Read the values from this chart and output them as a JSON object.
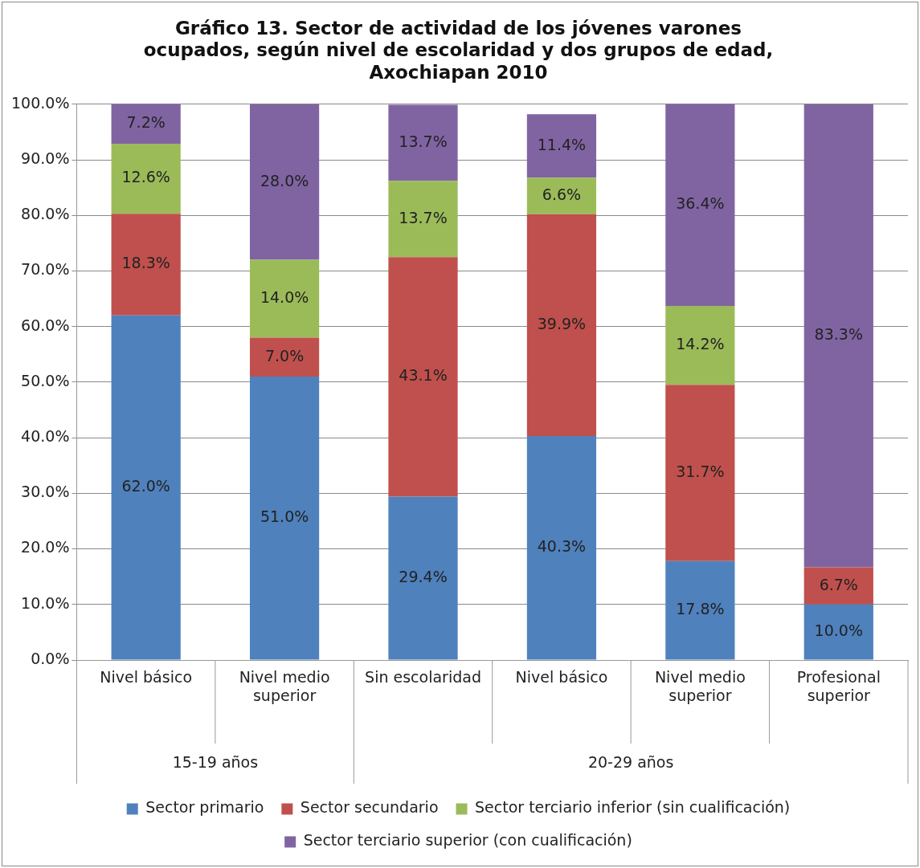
{
  "chart_data": {
    "type": "bar",
    "stacked": true,
    "title": "Gráfico 13. Sector de actividad de los jóvenes varones ocupados, según nivel de escolaridad y dos grupos de edad, Axochiapan 2010",
    "categories": [
      "Nivel básico",
      "Nivel medio superior",
      "Sin escolaridad",
      "Nivel básico",
      "Nivel medio superior",
      "Profesional superior"
    ],
    "annotations": [
      "15-19 años",
      "20-29 años"
    ],
    "series": [
      {
        "name": "Sector primario",
        "color": "#4f81bd",
        "values": [
          62.0,
          51.0,
          29.4,
          40.3,
          17.8,
          10.0
        ],
        "value_labels": [
          "62.0%",
          "51.0%",
          "29.4%",
          "40.3%",
          "17.8%",
          "10.0%"
        ]
      },
      {
        "name": "Sector secundario",
        "color": "#c0504d",
        "values": [
          18.3,
          7.0,
          43.1,
          39.9,
          31.7,
          6.7
        ],
        "value_labels": [
          "18.3%",
          "7.0%",
          "43.1%",
          "39.9%",
          "31.7%",
          "6.7%"
        ]
      },
      {
        "name": "Sector terciario inferior (sin cualificación)",
        "color": "#9bbb59",
        "values": [
          12.6,
          14.0,
          13.7,
          6.6,
          14.2,
          null
        ],
        "value_labels": [
          "12.6%",
          "14.0%",
          "13.7%",
          "6.6%",
          "14.2%",
          null
        ]
      },
      {
        "name": "Sector terciario superior (con cualificación)",
        "color": "#8064a2",
        "values": [
          7.2,
          28.0,
          13.7,
          11.4,
          36.4,
          83.3
        ],
        "value_labels": [
          "7.2%",
          "28.0%",
          "13.7%",
          "11.4%",
          "36.4%",
          "83.3%"
        ]
      }
    ],
    "ylim": [
      0,
      100
    ],
    "yticks": [
      {
        "value": 0,
        "label": "0.0%"
      },
      {
        "value": 10,
        "label": "10.0%"
      },
      {
        "value": 20,
        "label": "20.0%"
      },
      {
        "value": 30,
        "label": "30.0%"
      },
      {
        "value": 40,
        "label": "40.0%"
      },
      {
        "value": 50,
        "label": "50.0%"
      },
      {
        "value": 60,
        "label": "60.0%"
      },
      {
        "value": 70,
        "label": "70.0%"
      },
      {
        "value": 80,
        "label": "80.0%"
      },
      {
        "value": 90,
        "label": "90.0%"
      },
      {
        "value": 100,
        "label": "100.0%"
      }
    ],
    "grid": "y",
    "legend": "bottom"
  }
}
